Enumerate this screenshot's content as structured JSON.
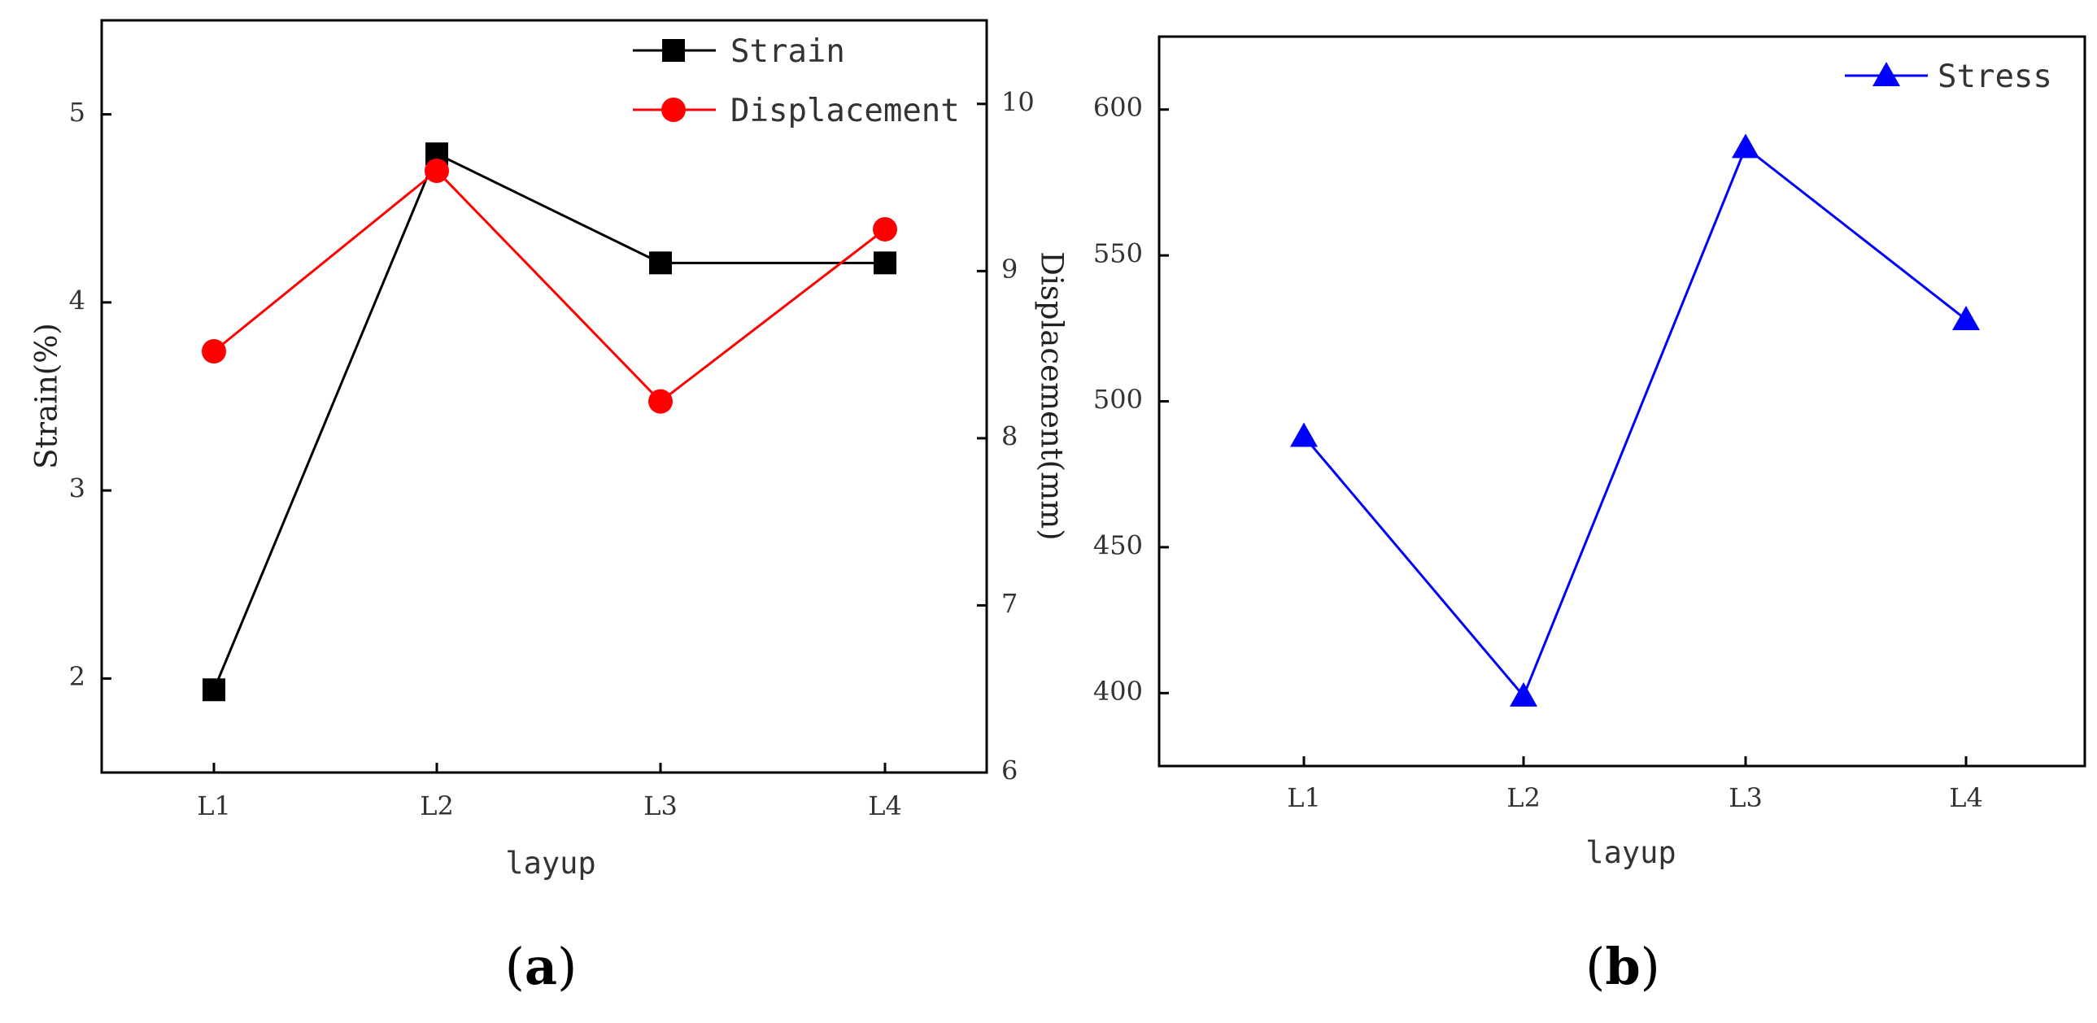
{
  "chart_data": [
    {
      "panel": "(a)",
      "panel_label": {
        "open": "(",
        "letter": "a",
        "close": ")"
      },
      "type": "line",
      "categories": [
        "L1",
        "L2",
        "L3",
        "L4"
      ],
      "xlabel": "layup",
      "series": [
        {
          "name": "Strain",
          "axis": "left",
          "color": "#000000",
          "marker": "square",
          "values": [
            1.94,
            4.79,
            4.21,
            4.21
          ]
        },
        {
          "name": "Displacement",
          "axis": "right",
          "color": "#ff0000",
          "marker": "circle",
          "values": [
            8.52,
            9.6,
            8.22,
            9.25
          ]
        }
      ],
      "ylabel_left": "Strain(%)",
      "ylabel_right": "Displacement(mm)",
      "ylim_left": [
        1.5,
        5.5
      ],
      "ylim_right": [
        6,
        10.5
      ],
      "yticks_left": [
        2,
        3,
        4,
        5
      ],
      "yticks_right": [
        6,
        7,
        8,
        9,
        10
      ],
      "legend_position": "top-right"
    },
    {
      "panel": "(b)",
      "panel_label": {
        "open": "(",
        "letter": "b",
        "close": ")"
      },
      "type": "line",
      "categories": [
        "L1",
        "L2",
        "L3",
        "L4"
      ],
      "xlabel": "layup",
      "series": [
        {
          "name": "Stress",
          "axis": "left",
          "color": "#0000ff",
          "marker": "triangle",
          "values": [
            488,
            399,
            587,
            528
          ]
        }
      ],
      "ylim": [
        375,
        625
      ],
      "yticks": [
        400,
        450,
        500,
        550,
        600
      ],
      "legend_position": "top-right"
    }
  ]
}
